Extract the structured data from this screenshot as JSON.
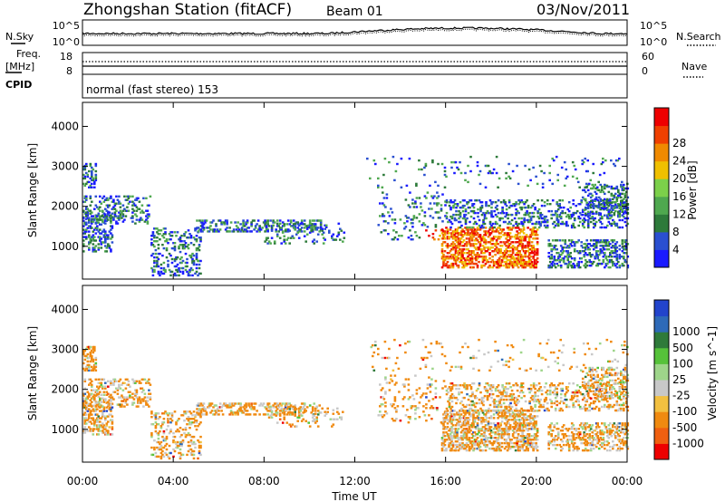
{
  "header": {
    "title": "Zhongshan Station (fitACF)",
    "beam": "Beam 01",
    "date": "03/Nov/2011"
  },
  "top_panels": {
    "nsky_label": "N.Sky",
    "nsearch_label": "N.Search",
    "freq_label_1": "Freq.",
    "freq_label_2": "[MHz]",
    "nave_label": "Nave",
    "cpid_label": "CPID",
    "noise_ticks": [
      "10^5",
      "10^0"
    ],
    "freq_ticks": [
      "18",
      "8"
    ],
    "nave_ticks": [
      "60",
      "0"
    ],
    "cpid_text": "normal (fast stereo) 153"
  },
  "chart_data": [
    {
      "type": "heatmap",
      "name": "power",
      "ylabel": "Slant Range [km]",
      "yticks": [
        1000,
        2000,
        3000,
        4000
      ],
      "ylim": [
        180,
        4600
      ],
      "colorbar_label": "Power [dB]",
      "colorbar_ticks": [
        4,
        8,
        12,
        16,
        20,
        24,
        28
      ],
      "colors": [
        "#1a1aff",
        "#2a4fd0",
        "#2d7a3a",
        "#4fa84f",
        "#7cd04a",
        "#f0c000",
        "#f08a00",
        "#f04000",
        "#ee0000"
      ]
    },
    {
      "type": "heatmap",
      "name": "velocity",
      "ylabel": "Slant Range [km]",
      "yticks": [
        1000,
        2000,
        3000,
        4000
      ],
      "ylim": [
        180,
        4600
      ],
      "colorbar_label": "Velocity [m s^-1]",
      "colorbar_ticks": [
        "1000",
        "500",
        "100",
        "25",
        "-25",
        "-100",
        "-500",
        "-1000"
      ],
      "colors": [
        "#2244cc",
        "#2e6ab8",
        "#2f7a3a",
        "#56c23a",
        "#9ed58a",
        "#c8c8c8",
        "#f2c040",
        "#f08a10",
        "#f06010",
        "#ee0000"
      ]
    }
  ],
  "x_axis": {
    "ticks": [
      "00:00",
      "04:00",
      "08:00",
      "12:00",
      "16:00",
      "20:00",
      "00:00"
    ],
    "label": "Time UT"
  }
}
